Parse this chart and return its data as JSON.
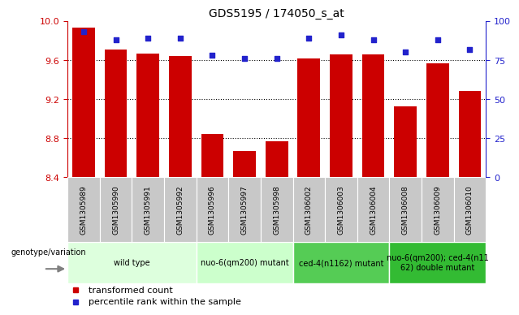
{
  "title": "GDS5195 / 174050_s_at",
  "samples": [
    "GSM1305989",
    "GSM1305990",
    "GSM1305991",
    "GSM1305992",
    "GSM1305996",
    "GSM1305997",
    "GSM1305998",
    "GSM1306002",
    "GSM1306003",
    "GSM1306004",
    "GSM1306008",
    "GSM1306009",
    "GSM1306010"
  ],
  "transformed_count": [
    9.93,
    9.71,
    9.67,
    9.64,
    8.84,
    8.67,
    8.77,
    9.62,
    9.66,
    9.66,
    9.13,
    9.57,
    9.28
  ],
  "percentile_rank": [
    93,
    88,
    89,
    89,
    78,
    76,
    76,
    89,
    91,
    88,
    80,
    88,
    82
  ],
  "ylim_left": [
    8.4,
    10.0
  ],
  "ylim_right": [
    0,
    100
  ],
  "yticks_left": [
    8.4,
    8.8,
    9.2,
    9.6,
    10.0
  ],
  "yticks_right": [
    0,
    25,
    50,
    75,
    100
  ],
  "bar_color": "#cc0000",
  "dot_color": "#2222cc",
  "grid_color": "#000000",
  "groups": [
    {
      "label": "wild type",
      "start": 0,
      "end": 4,
      "color": "#ddffdd"
    },
    {
      "label": "nuo-6(qm200) mutant",
      "start": 4,
      "end": 7,
      "color": "#ccffcc"
    },
    {
      "label": "ced-4(n1162) mutant",
      "start": 7,
      "end": 10,
      "color": "#55cc55"
    },
    {
      "label": "nuo-6(qm200); ced-4(n11\n62) double mutant",
      "start": 10,
      "end": 13,
      "color": "#33bb33"
    }
  ],
  "legend_bar_label": "transformed count",
  "legend_dot_label": "percentile rank within the sample",
  "genotype_label": "genotype/variation",
  "xlabel_fontsize": 6.5,
  "title_fontsize": 10
}
